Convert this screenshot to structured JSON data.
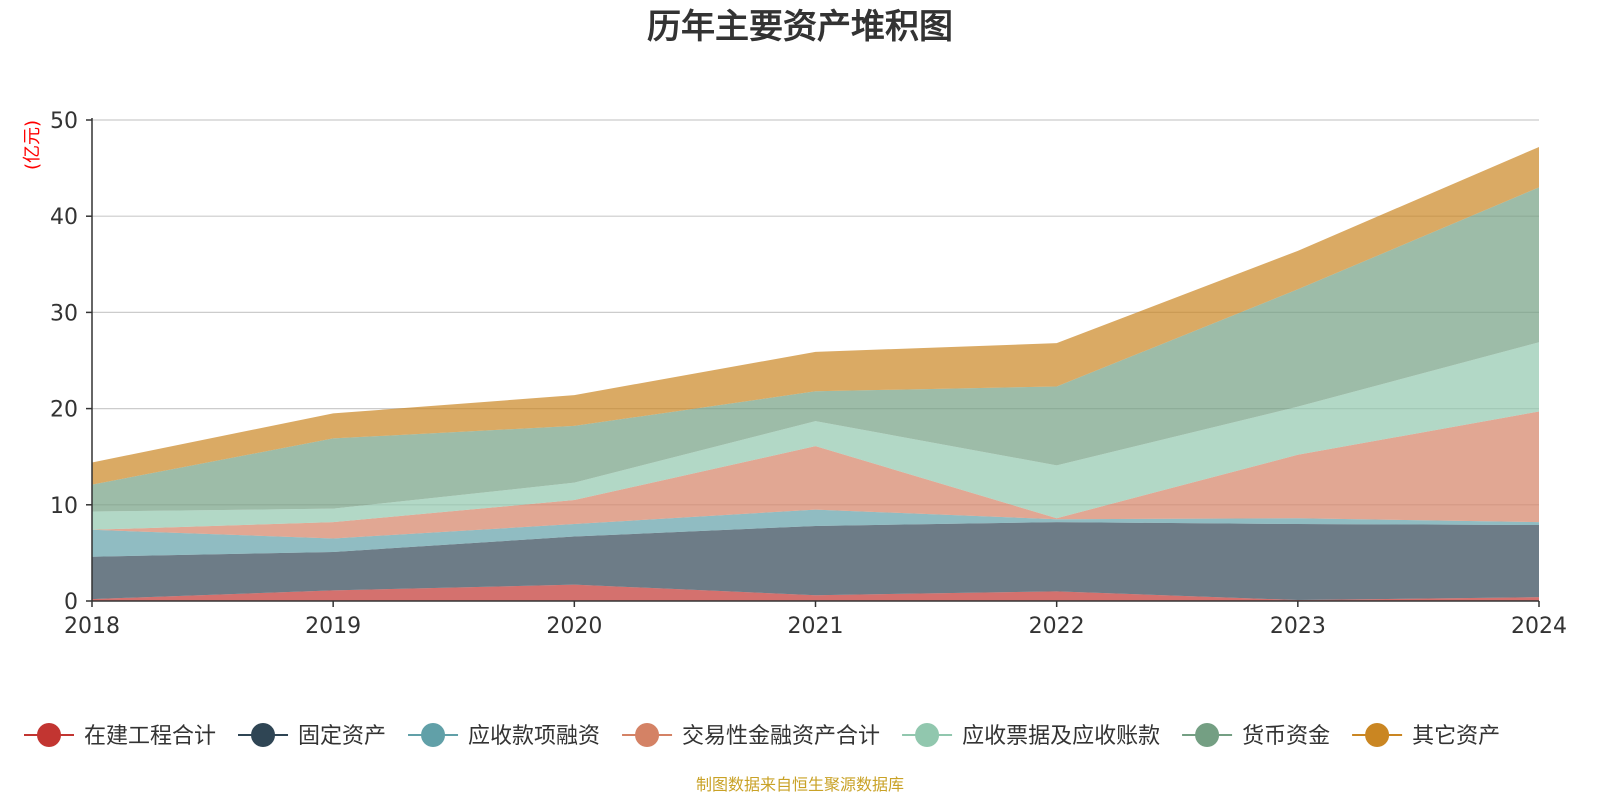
{
  "chart_data": {
    "type": "area",
    "stacked": true,
    "title": "历年主要资产堆积图",
    "ylabel": "(亿元)",
    "xlabel": "",
    "x": [
      "2018",
      "2019",
      "2020",
      "2021",
      "2022",
      "2023",
      "2024"
    ],
    "ylim": [
      0,
      50
    ],
    "yticks": [
      0,
      10,
      20,
      30,
      40,
      50
    ],
    "grid": true,
    "legend_position": "bottom",
    "source_note": "制图数据来自恒生聚源数据库",
    "series": [
      {
        "name": "在建工程合计",
        "color": "#c23531",
        "values": [
          0.2,
          1.1,
          1.7,
          0.6,
          1.0,
          0.1,
          0.4
        ]
      },
      {
        "name": "固定资产",
        "color": "#2f4554",
        "values": [
          4.4,
          4.0,
          5.0,
          7.2,
          7.2,
          7.9,
          7.5
        ]
      },
      {
        "name": "应收款项融资",
        "color": "#61a0a8",
        "values": [
          2.8,
          1.4,
          1.3,
          1.7,
          0.3,
          0.6,
          0.3
        ]
      },
      {
        "name": "交易性金融资产合计",
        "color": "#d48265",
        "values": [
          0.0,
          1.7,
          2.5,
          6.6,
          0.1,
          6.6,
          11.5
        ]
      },
      {
        "name": "应收票据及应收账款",
        "color": "#91c7ae",
        "values": [
          1.9,
          1.4,
          1.8,
          2.6,
          5.5,
          5.0,
          7.2
        ]
      },
      {
        "name": "货币资金",
        "color": "#749f83",
        "values": [
          2.8,
          7.3,
          5.9,
          3.1,
          8.2,
          12.2,
          16.1
        ]
      },
      {
        "name": "其它资产",
        "color": "#ca8622",
        "values": [
          2.3,
          2.6,
          3.2,
          4.1,
          4.5,
          4.0,
          4.2
        ]
      }
    ]
  },
  "colors": {
    "unit_label": "#ff0000",
    "source_note": "#c9a227",
    "grid": "#cccccc",
    "axis": "#333333"
  }
}
